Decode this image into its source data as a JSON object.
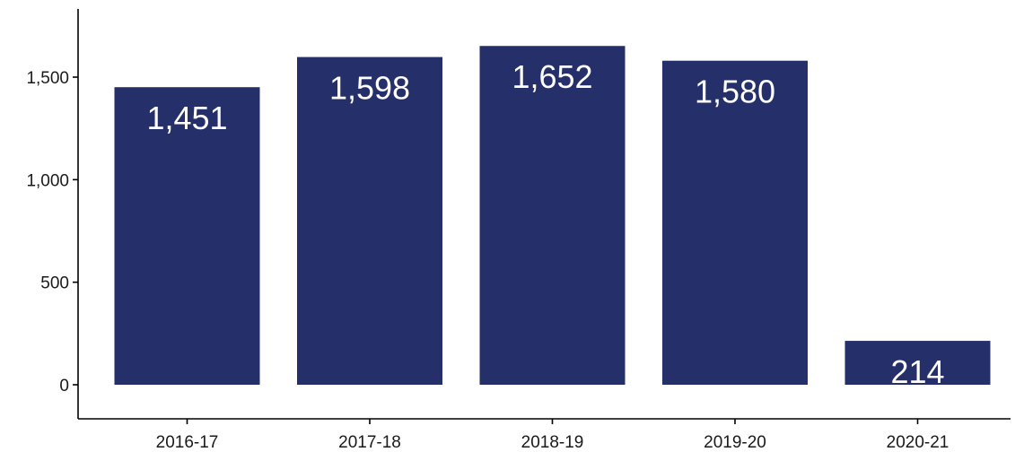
{
  "chart_data": {
    "type": "bar",
    "title": "",
    "xlabel": "",
    "ylabel": "",
    "categories": [
      "2016-17",
      "2017-18",
      "2018-19",
      "2019-20",
      "2020-21"
    ],
    "values": [
      1451,
      1598,
      1652,
      1580,
      214
    ],
    "value_labels": [
      "1,451",
      "1,598",
      "1,652",
      "1,580",
      "214"
    ],
    "yticks": [
      0,
      500,
      1000,
      1500
    ],
    "ytick_labels": [
      "0",
      "500",
      "1,000",
      "1,500"
    ],
    "ylim": [
      -160,
      1800
    ],
    "grid": false,
    "legend": "none",
    "bar_color": "#25306a",
    "value_label_color": "#ffffff"
  }
}
